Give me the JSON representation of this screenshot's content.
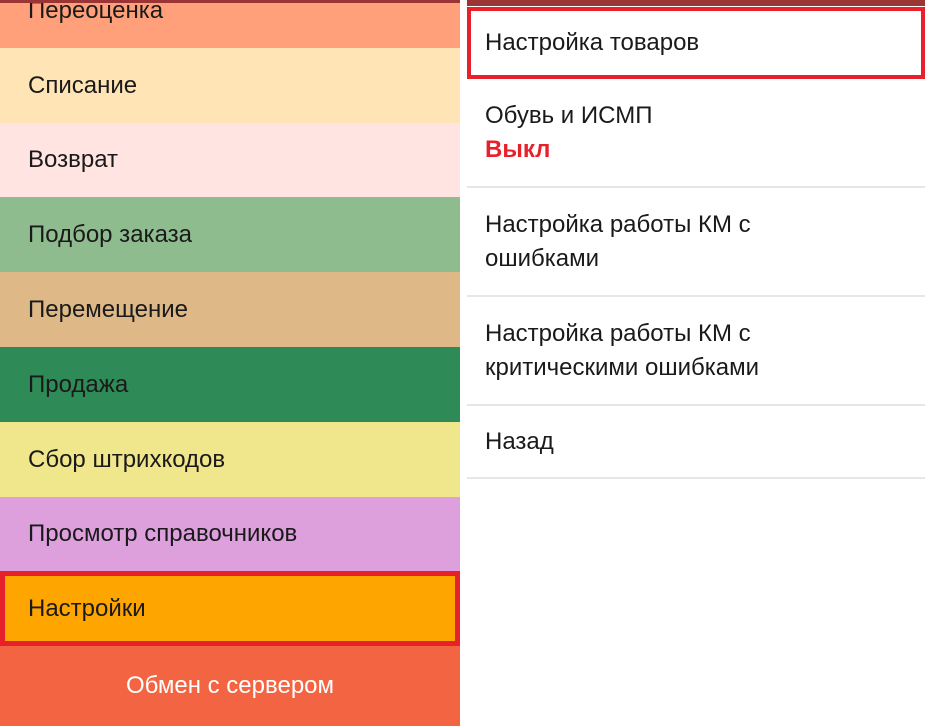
{
  "main_menu": {
    "items": [
      {
        "label": "Переоценка",
        "color": "#ffa07a"
      },
      {
        "label": "Списание",
        "color": "#ffe4b5"
      },
      {
        "label": "Возврат",
        "color": "#ffe4e1"
      },
      {
        "label": "Подбор заказа",
        "color": "#8fbc8f"
      },
      {
        "label": "Перемещение",
        "color": "#deb887"
      },
      {
        "label": "Продажа",
        "color": "#2e8b57"
      },
      {
        "label": "Сбор штрихкодов",
        "color": "#f0e68c"
      },
      {
        "label": "Просмотр справочников",
        "color": "#dda0dd"
      },
      {
        "label": "Настройки",
        "color": "#ffa500",
        "selected": true
      }
    ],
    "exchange_button": "Обмен с сервером"
  },
  "settings_menu": {
    "items": [
      {
        "label": "Настройка товаров",
        "selected": true
      },
      {
        "label": "Обувь и ИСМП",
        "status": "Выкл"
      },
      {
        "label": "Настройка работы КМ с ошибками"
      },
      {
        "label": "Настройка работы КМ с критическими ошибками"
      },
      {
        "label": "Назад"
      }
    ]
  },
  "colors": {
    "highlight": "#e8202a",
    "status_off": "#e8202a",
    "exchange": "#f36442"
  }
}
